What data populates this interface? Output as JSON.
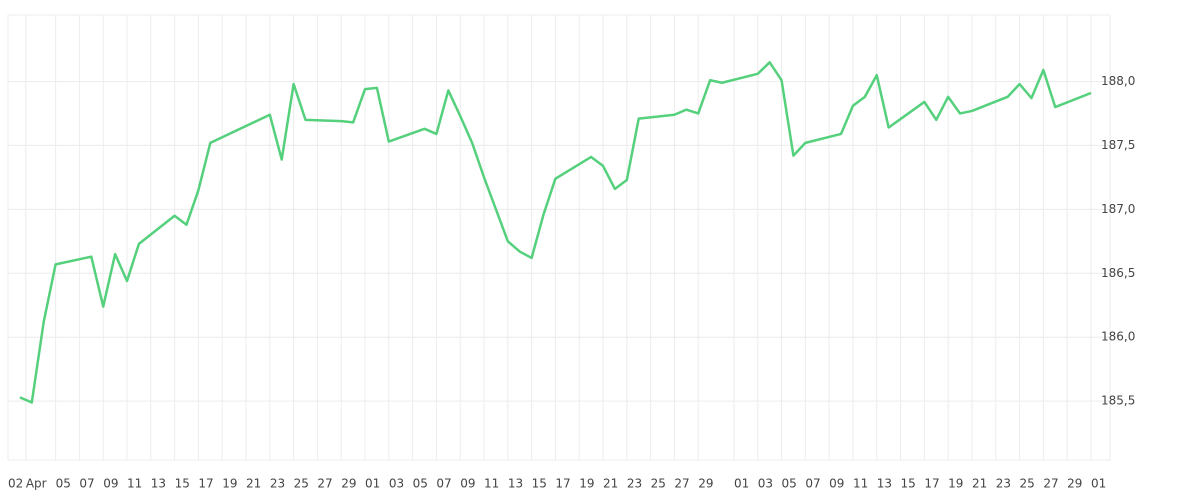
{
  "chart_data": {
    "type": "line",
    "color": "#55d07c",
    "grid": true,
    "x": [
      0,
      1,
      2,
      3,
      6,
      7,
      8,
      9,
      10,
      13,
      14,
      15,
      16,
      21,
      22,
      23,
      24,
      27,
      28,
      29,
      30,
      31,
      34,
      35,
      36,
      37,
      38,
      39,
      40,
      41,
      42,
      43,
      44,
      45,
      48,
      49,
      50,
      51,
      52,
      55,
      56,
      57,
      58,
      59,
      62,
      63,
      64,
      65,
      66,
      69,
      70,
      71,
      72,
      73,
      76,
      77,
      78,
      79,
      80,
      83,
      84,
      85,
      86,
      87,
      90
    ],
    "values": [
      185.53,
      185.49,
      186.12,
      186.57,
      186.63,
      186.24,
      186.65,
      186.44,
      186.73,
      186.95,
      186.88,
      187.15,
      187.52,
      187.74,
      187.39,
      187.98,
      187.7,
      187.69,
      187.68,
      187.94,
      187.95,
      187.53,
      187.63,
      187.59,
      187.93,
      187.73,
      187.52,
      187.25,
      187.0,
      186.75,
      186.67,
      186.62,
      186.96,
      187.24,
      187.41,
      187.34,
      187.16,
      187.23,
      187.71,
      187.74,
      187.78,
      187.75,
      188.01,
      187.99,
      188.06,
      188.15,
      188.01,
      187.42,
      187.52,
      187.59,
      187.81,
      187.88,
      188.05,
      187.64,
      187.84,
      187.7,
      187.88,
      187.75,
      187.77,
      187.88,
      187.98,
      187.87,
      188.09,
      187.8,
      187.91
    ],
    "xlim": [
      -1,
      91.6
    ],
    "xticks": [
      {
        "value": -1,
        "label": "02"
      },
      {
        "value": 0.5,
        "label": "Apr"
      },
      {
        "value": 3,
        "label": "05"
      },
      {
        "value": 5,
        "label": "07"
      },
      {
        "value": 7,
        "label": "09"
      },
      {
        "value": 9,
        "label": "11"
      },
      {
        "value": 11,
        "label": "13"
      },
      {
        "value": 13,
        "label": "15"
      },
      {
        "value": 15,
        "label": "17"
      },
      {
        "value": 17,
        "label": "19"
      },
      {
        "value": 19,
        "label": "21"
      },
      {
        "value": 21,
        "label": "23"
      },
      {
        "value": 23,
        "label": "25"
      },
      {
        "value": 25,
        "label": "27"
      },
      {
        "value": 27,
        "label": "29"
      },
      {
        "value": 29,
        "label": "01"
      },
      {
        "value": 31,
        "label": "03"
      },
      {
        "value": 33,
        "label": "05"
      },
      {
        "value": 35,
        "label": "07"
      },
      {
        "value": 37,
        "label": "09"
      },
      {
        "value": 39,
        "label": "11"
      },
      {
        "value": 41,
        "label": "13"
      },
      {
        "value": 43,
        "label": "15"
      },
      {
        "value": 45,
        "label": "17"
      },
      {
        "value": 47,
        "label": "19"
      },
      {
        "value": 49,
        "label": "21"
      },
      {
        "value": 51,
        "label": "23"
      },
      {
        "value": 53,
        "label": "25"
      },
      {
        "value": 55,
        "label": "27"
      },
      {
        "value": 57,
        "label": "29"
      },
      {
        "value": 60,
        "label": "01"
      },
      {
        "value": 62,
        "label": "03"
      },
      {
        "value": 64,
        "label": "05"
      },
      {
        "value": 66,
        "label": "07"
      },
      {
        "value": 68,
        "label": "09"
      },
      {
        "value": 70,
        "label": "11"
      },
      {
        "value": 72,
        "label": "13"
      },
      {
        "value": 74,
        "label": "15"
      },
      {
        "value": 76,
        "label": "17"
      },
      {
        "value": 78,
        "label": "19"
      },
      {
        "value": 80,
        "label": "21"
      },
      {
        "value": 82,
        "label": "23"
      },
      {
        "value": 84,
        "label": "25"
      },
      {
        "value": 86,
        "label": "27"
      },
      {
        "value": 88,
        "label": "29"
      },
      {
        "value": 90,
        "label": "01"
      }
    ],
    "ylim": [
      185.04,
      188.52
    ],
    "yticks": [
      {
        "value": 185.5,
        "label": "185,5"
      },
      {
        "value": 186,
        "label": "186,0"
      },
      {
        "value": 186.5,
        "label": "186,5"
      },
      {
        "value": 187,
        "label": "187,0"
      },
      {
        "value": 187.5,
        "label": "187,5"
      },
      {
        "value": 188,
        "label": "188,0"
      }
    ]
  }
}
